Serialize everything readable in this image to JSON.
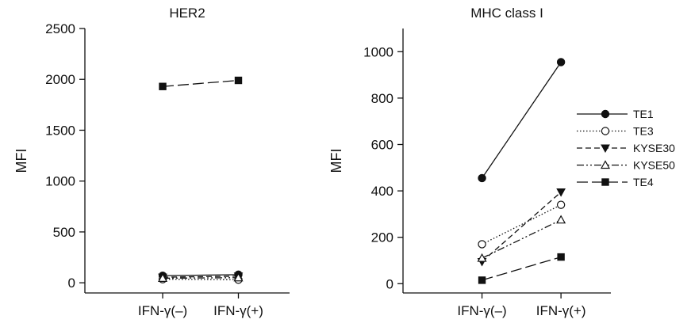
{
  "chart_data": [
    {
      "type": "line",
      "title": "HER2",
      "xlabel": "",
      "ylabel": "MFI",
      "categories": [
        "IFN-γ(–)",
        "IFN-γ(+)"
      ],
      "ylim": [
        -100,
        2500
      ],
      "yticks": [
        0,
        500,
        1000,
        1500,
        2000,
        2500
      ],
      "series": [
        {
          "name": "TE1",
          "values": [
            70,
            80
          ]
        },
        {
          "name": "TE3",
          "values": [
            35,
            30
          ]
        },
        {
          "name": "KYSE30",
          "values": [
            55,
            65
          ]
        },
        {
          "name": "KYSE50",
          "values": [
            45,
            50
          ]
        },
        {
          "name": "TE4",
          "values": [
            1930,
            1990
          ]
        }
      ]
    },
    {
      "type": "line",
      "title": "MHC class I",
      "xlabel": "",
      "ylabel": "MFI",
      "categories": [
        "IFN-γ(–)",
        "IFN-γ(+)"
      ],
      "ylim": [
        -40,
        1100
      ],
      "yticks": [
        0,
        200,
        400,
        600,
        800,
        1000
      ],
      "legend": "right",
      "series": [
        {
          "name": "TE1",
          "values": [
            455,
            955
          ]
        },
        {
          "name": "TE3",
          "values": [
            170,
            340
          ]
        },
        {
          "name": "KYSE30",
          "values": [
            95,
            395
          ]
        },
        {
          "name": "KYSE50",
          "values": [
            110,
            275
          ]
        },
        {
          "name": "TE4",
          "values": [
            15,
            115
          ]
        }
      ]
    }
  ],
  "series_styles": [
    {
      "name": "TE1",
      "dash": "",
      "marker": "circle-filled",
      "color": "#111111"
    },
    {
      "name": "TE3",
      "dash": "1.5,2.5",
      "marker": "circle-open",
      "color": "#111111"
    },
    {
      "name": "KYSE30",
      "dash": "7,4",
      "marker": "triangle-down-filled",
      "color": "#111111"
    },
    {
      "name": "KYSE50",
      "dash": "9,3,2,3,2,3",
      "marker": "triangle-up-open",
      "color": "#111111"
    },
    {
      "name": "TE4",
      "dash": "14,5",
      "marker": "square-filled",
      "color": "#111111"
    }
  ]
}
